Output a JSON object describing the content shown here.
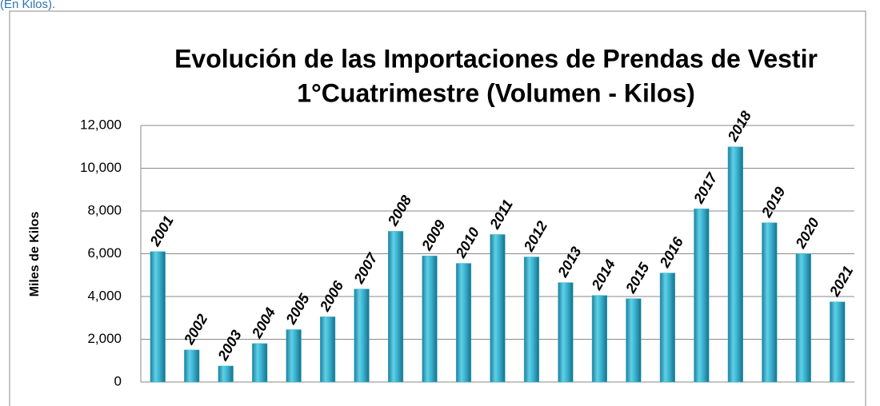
{
  "header": "(En Kilos).",
  "chart_data": {
    "type": "bar",
    "title": [
      "Evolución de las Importaciones de Prendas de Vestir",
      "1°Cuatrimestre (Volumen - Kilos)"
    ],
    "y_label": "Miles de Kilos",
    "categories": [
      "2001",
      "2002",
      "2003",
      "2004",
      "2005",
      "2006",
      "2007",
      "2008",
      "2009",
      "2010",
      "2011",
      "2012",
      "2013",
      "2014",
      "2015",
      "2016",
      "2017",
      "2018",
      "2019",
      "2020",
      "2021"
    ],
    "values": [
      6100,
      1500,
      750,
      1800,
      2450,
      3050,
      4350,
      7050,
      5900,
      5550,
      6900,
      5850,
      4650,
      4050,
      3900,
      5100,
      8100,
      11000,
      7450,
      6000,
      3750
    ],
    "color": "#3bb3cf",
    "ylim": [
      0,
      12000
    ],
    "yticks": [
      0,
      {
        "value": 2000,
        "label": "2,000"
      },
      {
        "value": 4000,
        "label": "4,000"
      },
      {
        "value": 6000,
        "label": "6,000"
      },
      {
        "value": 8000,
        "label": "8,000"
      },
      {
        "value": 10000,
        "label": "10,000"
      },
      {
        "value": 12000,
        "label": "12,000"
      }
    ],
    "grid": true
  }
}
